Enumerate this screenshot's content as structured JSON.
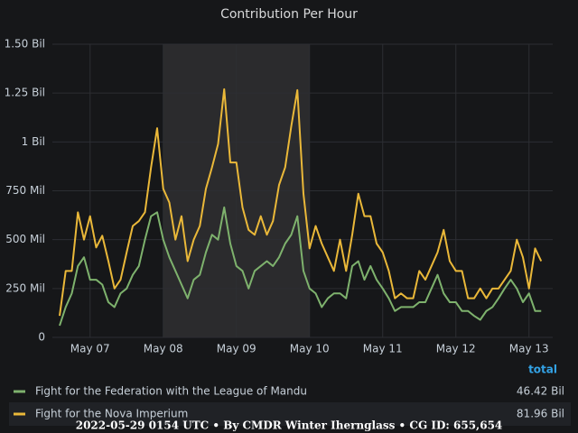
{
  "chart_data": {
    "type": "line",
    "title": "Contribution Per Hour",
    "categories": [
      null,
      null,
      null,
      null,
      null,
      "May 07",
      null,
      null,
      null,
      null,
      null,
      null,
      null,
      null,
      null,
      null,
      null,
      "May 08",
      null,
      null,
      null,
      null,
      null,
      null,
      null,
      null,
      null,
      null,
      null,
      "May 09",
      null,
      null,
      null,
      null,
      null,
      null,
      null,
      null,
      null,
      null,
      null,
      "May 10",
      null,
      null,
      null,
      null,
      null,
      null,
      null,
      null,
      null,
      null,
      null,
      "May 11",
      null,
      null,
      null,
      null,
      null,
      null,
      null,
      null,
      null,
      null,
      null,
      "May 12",
      null,
      null,
      null,
      null,
      null,
      null,
      null,
      null,
      null,
      null,
      null,
      "May 13",
      null,
      null
    ],
    "ylim": [
      0,
      1500000000.0
    ],
    "yticks": [
      0,
      {
        "value": 250000000.0,
        "label": "250 Mil"
      },
      {
        "value": 500000000.0,
        "label": "500 Mil"
      },
      {
        "value": 750000000.0,
        "label": "750 Mil"
      },
      {
        "value": 1000000000.0,
        "label": "1 Bil"
      },
      {
        "value": 1250000000.0,
        "label": "1.25 Bil"
      },
      {
        "value": 1500000000.0,
        "label": "1.50 Bil"
      }
    ],
    "grid": true,
    "highlight": [
      "May 08",
      "May 10"
    ],
    "legend_column": "total",
    "series": [
      {
        "name": "Fight for the Federation with the League of Mandu",
        "color": "#7eb26d",
        "total": {
          "value": 46420000000.0,
          "label": "46.42 Bil"
        },
        "values": [
          60000000.0,
          155000000.0,
          225000000.0,
          365000000.0,
          410000000.0,
          295000000.0,
          295000000.0,
          270000000.0,
          180000000.0,
          155000000.0,
          225000000.0,
          250000000.0,
          320000000.0,
          365000000.0,
          500000000.0,
          620000000.0,
          640000000.0,
          500000000.0,
          410000000.0,
          340000000.0,
          270000000.0,
          200000000.0,
          295000000.0,
          320000000.0,
          435000000.0,
          525000000.0,
          500000000.0,
          665000000.0,
          480000000.0,
          365000000.0,
          340000000.0,
          250000000.0,
          340000000.0,
          365000000.0,
          390000000.0,
          365000000.0,
          410000000.0,
          480000000.0,
          525000000.0,
          620000000.0,
          340000000.0,
          250000000.0,
          225000000.0,
          155000000.0,
          200000000.0,
          225000000.0,
          225000000.0,
          200000000.0,
          365000000.0,
          390000000.0,
          295000000.0,
          365000000.0,
          295000000.0,
          250000000.0,
          200000000.0,
          135000000.0,
          155000000.0,
          155000000.0,
          155000000.0,
          180000000.0,
          180000000.0,
          250000000.0,
          320000000.0,
          225000000.0,
          180000000.0,
          180000000.0,
          135000000.0,
          135000000.0,
          110000000.0,
          90000000.0,
          135000000.0,
          155000000.0,
          200000000.0,
          250000000.0,
          295000000.0,
          250000000.0,
          180000000.0,
          225000000.0,
          135000000.0,
          135000000.0
        ]
      },
      {
        "name": "Fight for the Nova Imperium",
        "color": "#eab839",
        "total": {
          "value": 81960000000.0,
          "label": "81.96 Bil"
        },
        "values": [
          110000000.0,
          340000000.0,
          340000000.0,
          640000000.0,
          500000000.0,
          620000000.0,
          460000000.0,
          520000000.0,
          390000000.0,
          250000000.0,
          295000000.0,
          435000000.0,
          570000000.0,
          595000000.0,
          640000000.0,
          870000000.0,
          1070000000.0,
          760000000.0,
          690000000.0,
          500000000.0,
          620000000.0,
          390000000.0,
          500000000.0,
          570000000.0,
          760000000.0,
          870000000.0,
          990000000.0,
          1270000000.0,
          895000000.0,
          895000000.0,
          665000000.0,
          550000000.0,
          525000000.0,
          620000000.0,
          525000000.0,
          595000000.0,
          780000000.0,
          870000000.0,
          1080000000.0,
          1265000000.0,
          735000000.0,
          455000000.0,
          570000000.0,
          480000000.0,
          410000000.0,
          340000000.0,
          500000000.0,
          340000000.0,
          525000000.0,
          735000000.0,
          620000000.0,
          620000000.0,
          480000000.0,
          435000000.0,
          340000000.0,
          200000000.0,
          225000000.0,
          200000000.0,
          200000000.0,
          340000000.0,
          295000000.0,
          365000000.0,
          435000000.0,
          550000000.0,
          390000000.0,
          340000000.0,
          340000000.0,
          200000000.0,
          200000000.0,
          250000000.0,
          200000000.0,
          250000000.0,
          250000000.0,
          295000000.0,
          340000000.0,
          500000000.0,
          410000000.0,
          250000000.0,
          455000000.0,
          390000000.0
        ]
      }
    ]
  },
  "footer": "2022-05-29 0154 UTC • By CMDR Winter Ihernglass • CG ID: 655,654"
}
